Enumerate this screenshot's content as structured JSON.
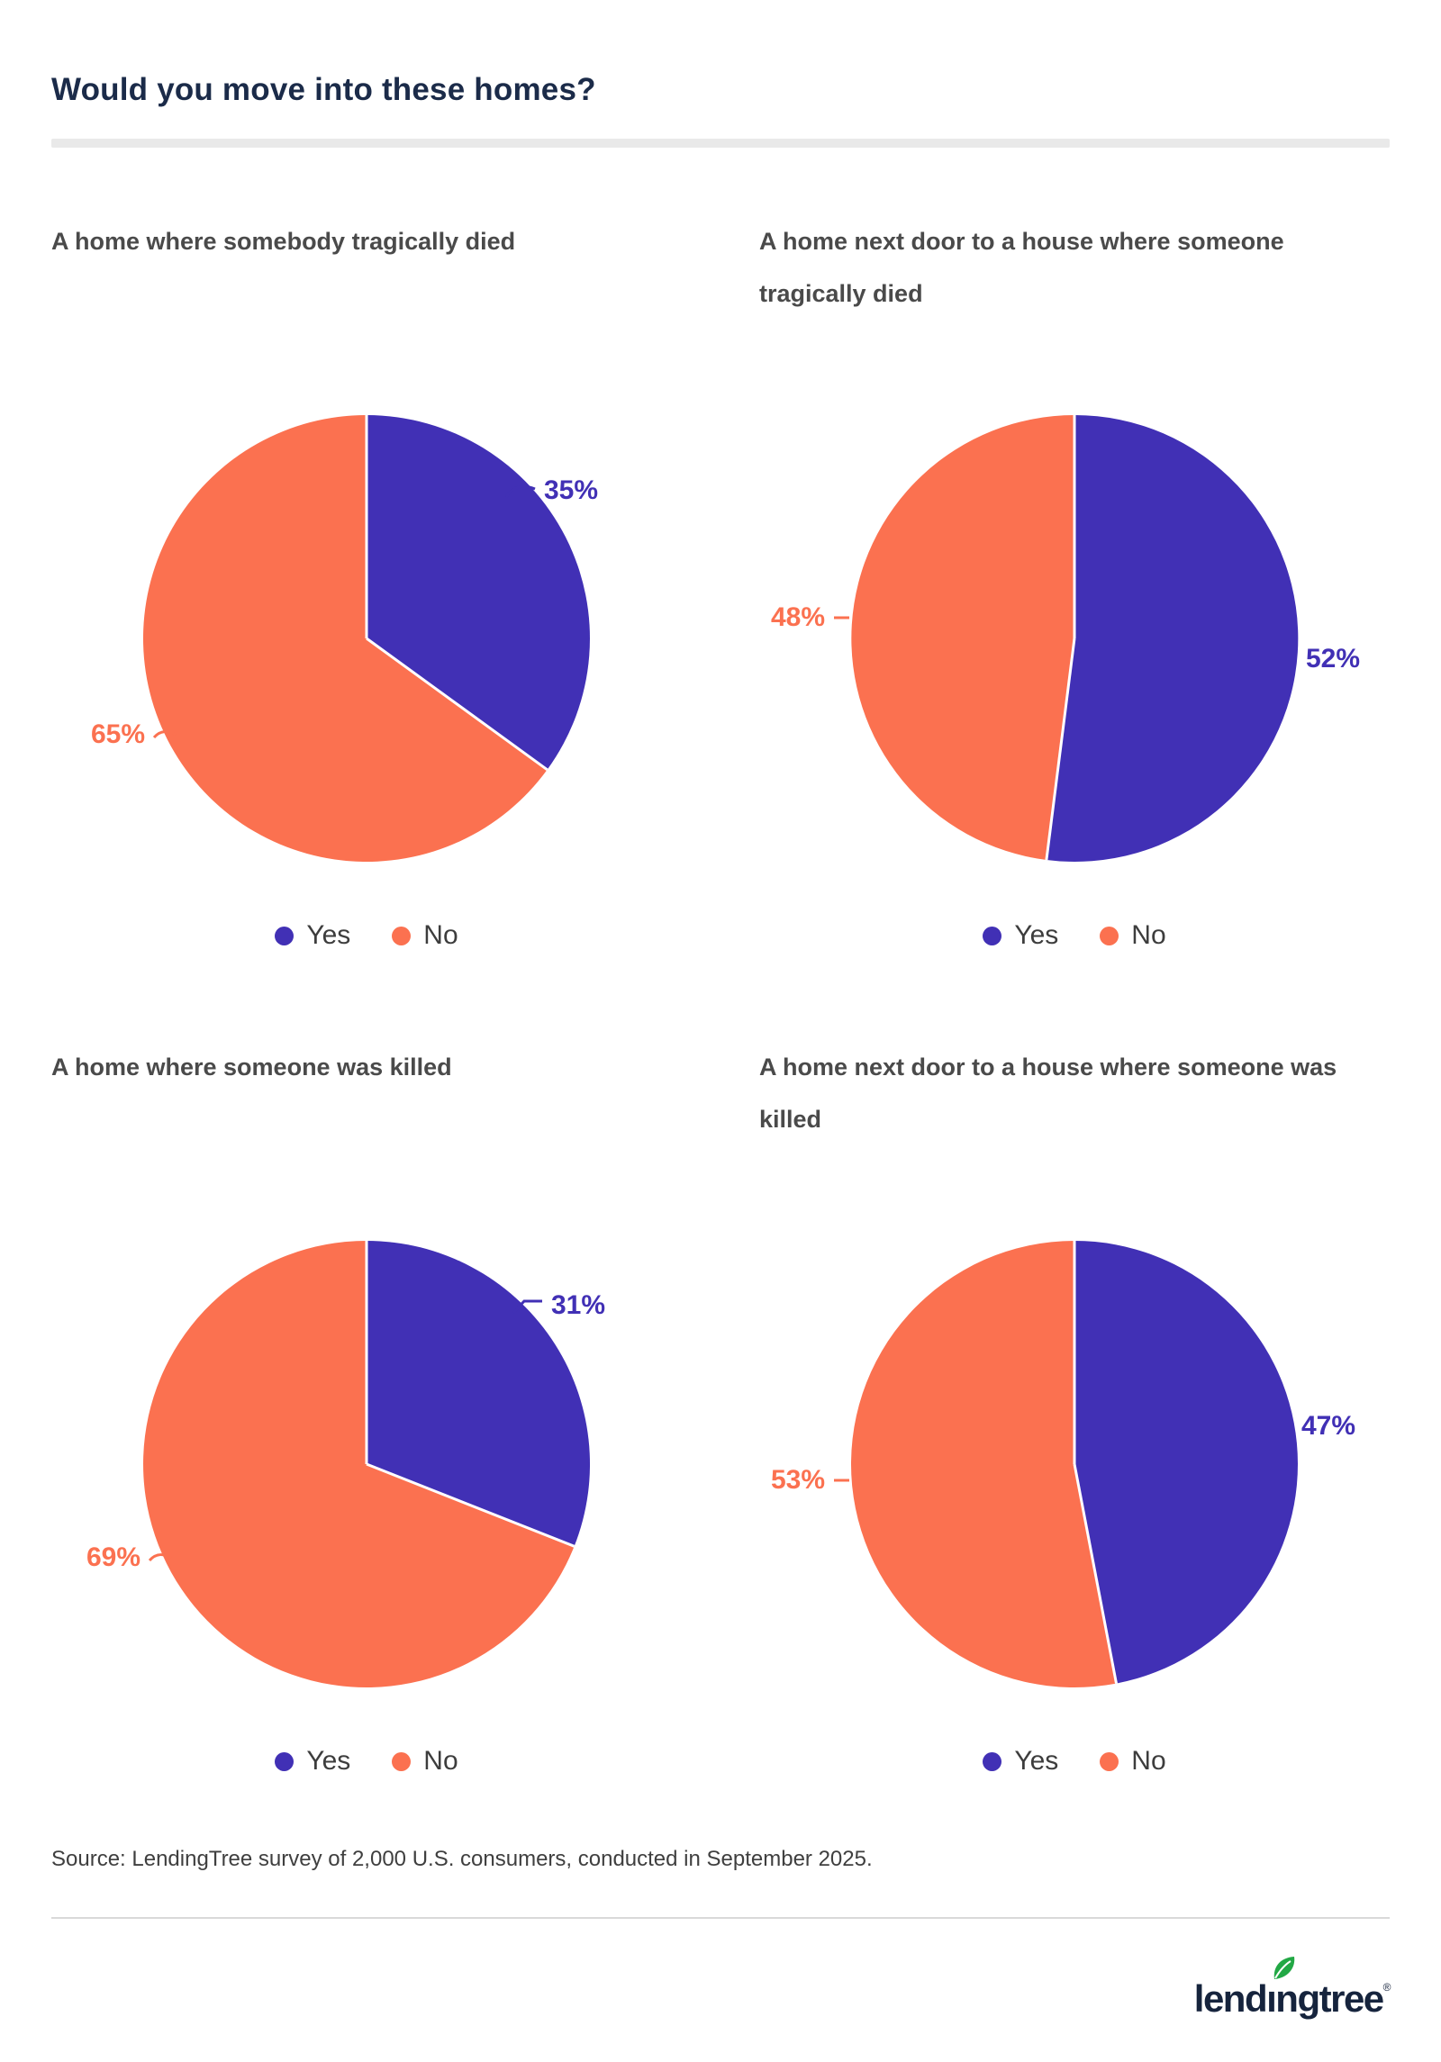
{
  "page": {
    "title": "Would you move into these homes?",
    "source": "Source: LendingTree survey of 2,000 U.S. consumers, conducted in September 2025.",
    "logo": {
      "pre": "lend",
      "i": "ı",
      "post": "ngtree",
      "reg": "®"
    }
  },
  "colors": {
    "yes": "#4130b5",
    "no": "#fb7150",
    "title_text": "#1b2b49",
    "subtitle_text": "#4a4a4a",
    "divider": "#e9e9e9",
    "logo_navy": "#16243d",
    "logo_leaf_green": "#22a845"
  },
  "legend": {
    "yes": "Yes",
    "no": "No"
  },
  "chart_data": [
    {
      "type": "pie",
      "title": "A home where somebody tragically died",
      "categories": [
        "Yes",
        "No"
      ],
      "values": [
        35,
        65
      ],
      "labels": [
        "35%",
        "65%"
      ],
      "colors": [
        "#4130b5",
        "#fb7150"
      ],
      "legend": [
        "Yes",
        "No"
      ],
      "start_angle_deg": 0,
      "direction": "clockwise",
      "legend_position": "bottom-center"
    },
    {
      "type": "pie",
      "title": "A home next door to a house where someone tragically died",
      "categories": [
        "Yes",
        "No"
      ],
      "values": [
        52,
        48
      ],
      "labels": [
        "52%",
        "48%"
      ],
      "colors": [
        "#4130b5",
        "#fb7150"
      ],
      "legend": [
        "Yes",
        "No"
      ],
      "start_angle_deg": 0,
      "direction": "clockwise",
      "legend_position": "bottom-center"
    },
    {
      "type": "pie",
      "title": "A home where someone was killed",
      "categories": [
        "Yes",
        "No"
      ],
      "values": [
        31,
        69
      ],
      "labels": [
        "31%",
        "69%"
      ],
      "colors": [
        "#4130b5",
        "#fb7150"
      ],
      "legend": [
        "Yes",
        "No"
      ],
      "start_angle_deg": 0,
      "direction": "clockwise",
      "legend_position": "bottom-center"
    },
    {
      "type": "pie",
      "title": "A home next door to a house where someone was killed",
      "categories": [
        "Yes",
        "No"
      ],
      "values": [
        47,
        53
      ],
      "labels": [
        "47%",
        "53%"
      ],
      "colors": [
        "#4130b5",
        "#fb7150"
      ],
      "legend": [
        "Yes",
        "No"
      ],
      "start_angle_deg": 0,
      "direction": "clockwise",
      "legend_position": "bottom-center"
    }
  ]
}
